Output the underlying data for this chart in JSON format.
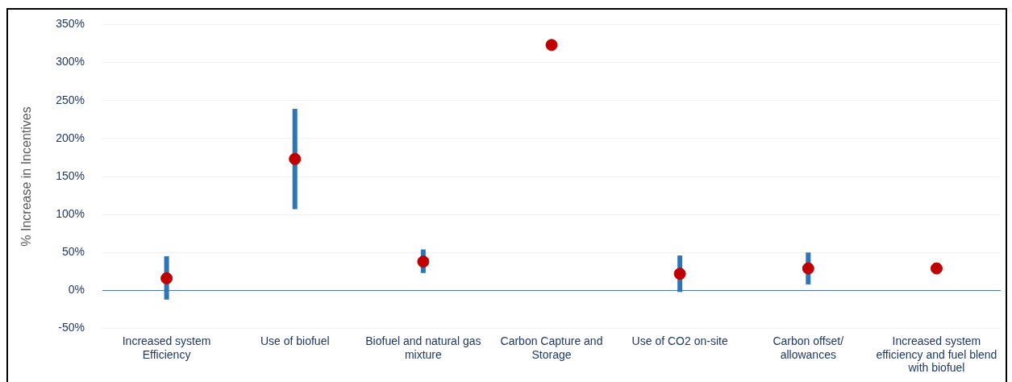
{
  "chart_data": {
    "type": "scatter",
    "ylabel": "% Increase in Incentives",
    "categories": [
      "Increased system Efficiency",
      "Use of biofuel",
      "Biofuel and natural gas mixture",
      "Carbon Capture and Storage",
      "Use of CO2 on-site",
      "Carbon offset/ allowances",
      "Increased system efficiency and fuel blend with biofuel"
    ],
    "series": [
      {
        "color": "#c00000",
        "values": [
          16,
          173,
          38,
          323,
          22,
          29,
          29
        ],
        "errors": [
          [
            -12,
            45
          ],
          [
            107,
            239
          ],
          [
            23,
            54
          ],
          null,
          [
            -2,
            46
          ],
          [
            8,
            50
          ],
          null
        ]
      }
    ],
    "ref_lines": [
      {
        "axis": "y",
        "value": 0,
        "color": "#4a6fa5"
      }
    ],
    "ylim": [
      -50,
      350
    ],
    "yticks": [
      {
        "value": -50,
        "label": "-50%"
      },
      {
        "value": 0,
        "label": "0%"
      },
      {
        "value": 50,
        "label": "50%"
      },
      {
        "value": 100,
        "label": "100%"
      },
      {
        "value": 150,
        "label": "150%"
      },
      {
        "value": 200,
        "label": "200%"
      },
      {
        "value": 250,
        "label": "250%"
      },
      {
        "value": 300,
        "label": "300%"
      },
      {
        "value": 350,
        "label": "350%"
      }
    ],
    "grid": "y",
    "legend": false,
    "marker": "circle"
  }
}
